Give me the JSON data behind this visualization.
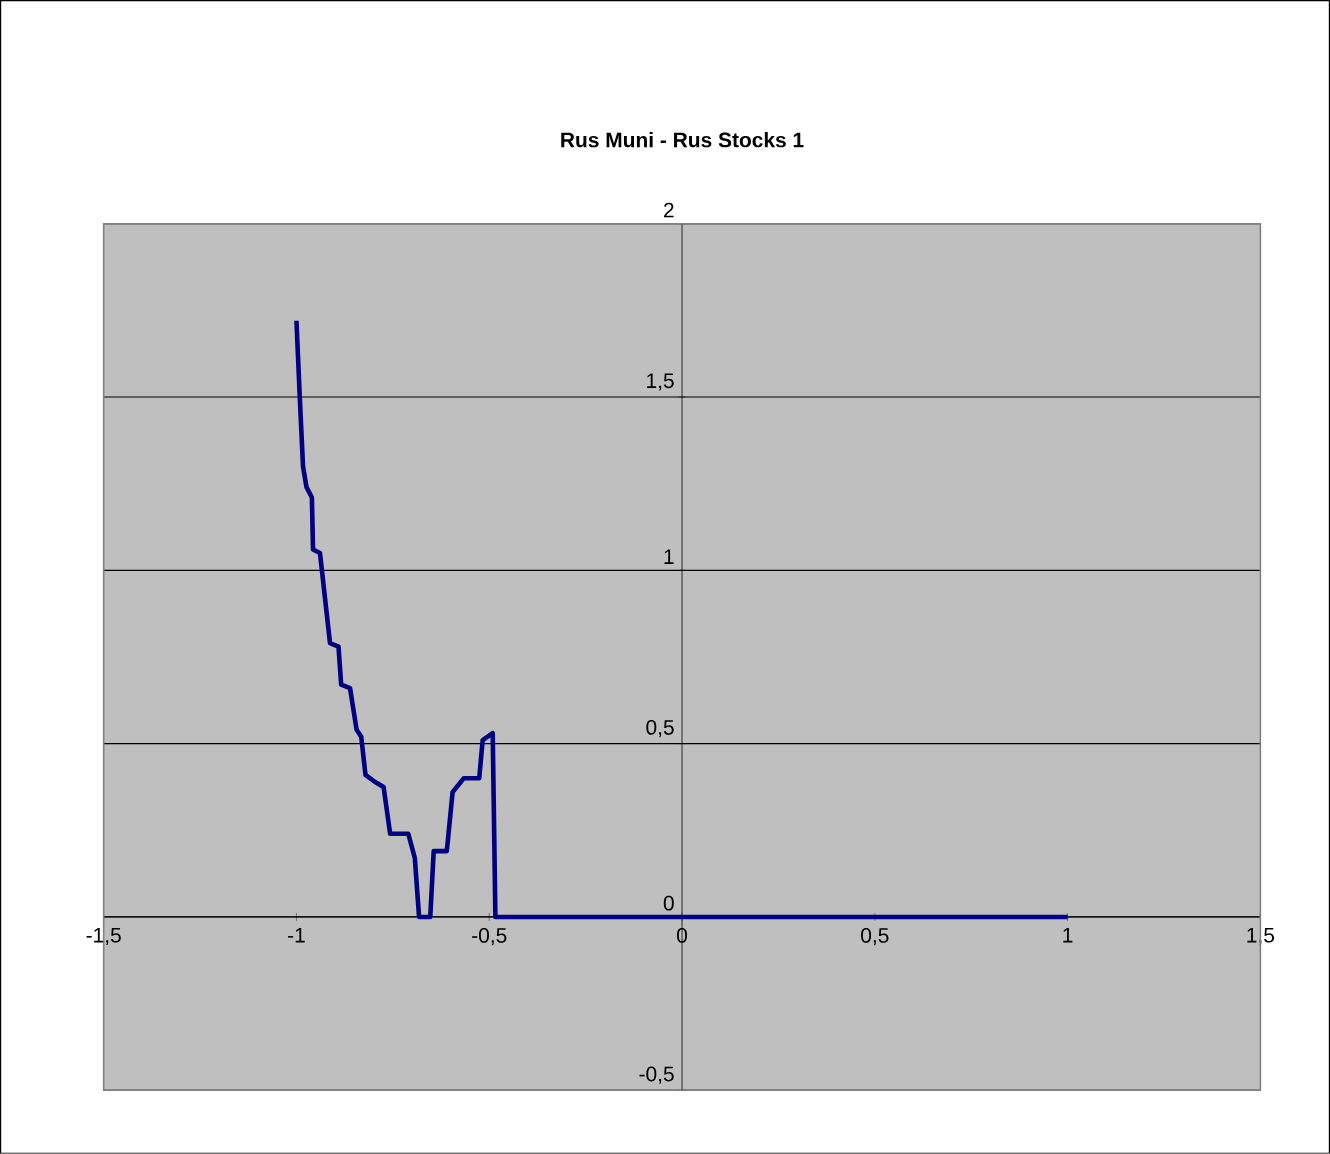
{
  "chart_data": {
    "type": "line",
    "title": "Rus Muni - Rus Stocks 1",
    "x": [
      -1,
      -0.991,
      -0.983,
      -0.974,
      -0.96,
      -0.957,
      -0.939,
      -0.913,
      -0.891,
      -0.884,
      -0.861,
      -0.844,
      -0.832,
      -0.821,
      -0.797,
      -0.774,
      -0.757,
      -0.71,
      -0.693,
      -0.682,
      -0.653,
      -0.644,
      -0.61,
      -0.595,
      -0.566,
      -0.526,
      -0.517,
      -0.491,
      -0.484,
      1
    ],
    "series": [
      {
        "color": "#000080",
        "values": [
          1.72,
          1.49,
          1.3,
          1.24,
          1.21,
          1.06,
          1.05,
          0.79,
          0.78,
          0.67,
          0.66,
          0.54,
          0.52,
          0.41,
          0.39,
          0.375,
          0.24,
          0.24,
          0.17,
          0,
          0,
          0.19,
          0.19,
          0.36,
          0.4,
          0.4,
          0.51,
          0.53,
          0,
          0
        ]
      }
    ],
    "xlim": [
      -1.5,
      1.5
    ],
    "xticks": [
      {
        "value": -1.5,
        "label": "-1,5"
      },
      -1,
      {
        "value": -0.5,
        "label": "-0,5"
      },
      0,
      {
        "value": 0.5,
        "label": "0,5"
      },
      1,
      {
        "value": 1.5,
        "label": "1,5"
      }
    ],
    "ylim": [
      -0.5,
      2
    ],
    "yticks": [
      {
        "value": -0.5,
        "label": "-0,5"
      },
      0,
      {
        "value": 0.5,
        "label": "0,5"
      },
      1,
      {
        "value": 1.5,
        "label": "1,5"
      },
      2
    ],
    "grid": "y",
    "legend": false,
    "marker": "none",
    "line_style": "solid"
  }
}
